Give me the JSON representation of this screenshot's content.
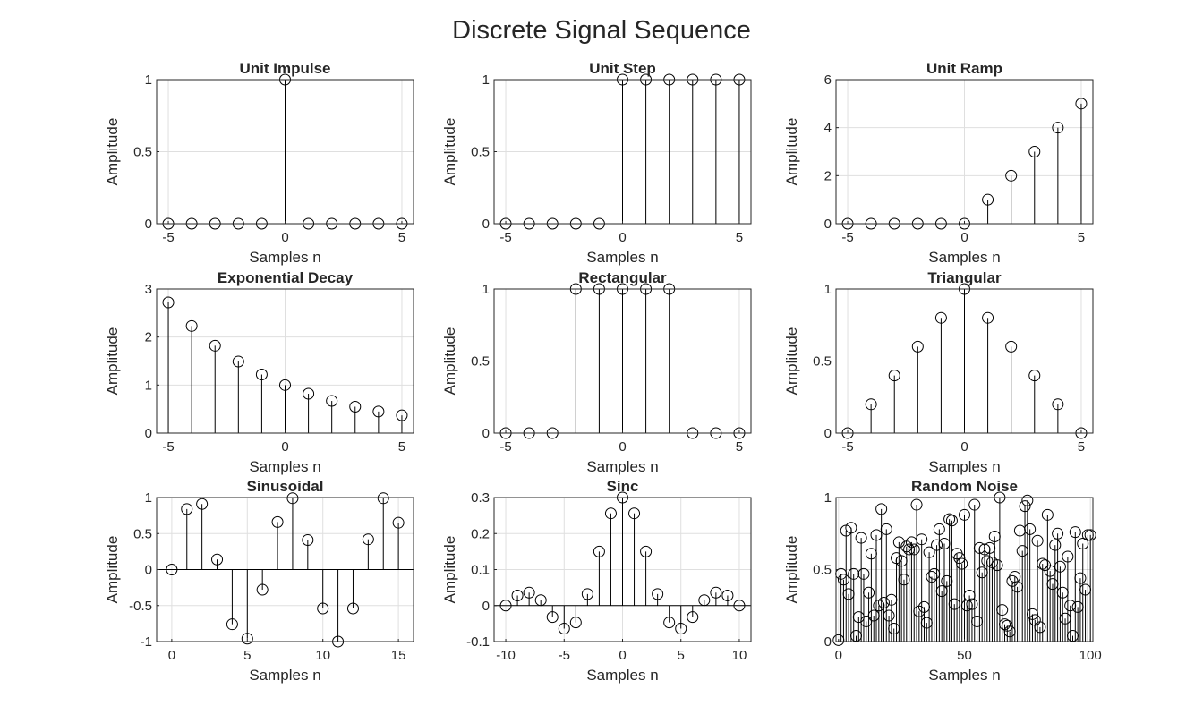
{
  "figure_title": "Discrete Signal Sequence",
  "chart_data": [
    {
      "type": "stem",
      "title": "Unit Impulse",
      "xlabel": "Samples n",
      "ylabel": "Amplitude",
      "xlim": [
        -5.5,
        5.5
      ],
      "ylim": [
        0,
        1
      ],
      "xticks": [
        -5,
        0,
        5
      ],
      "yticks": [
        0,
        0.5,
        1
      ],
      "grid": true,
      "x": [
        -5,
        -4,
        -3,
        -2,
        -1,
        0,
        1,
        2,
        3,
        4,
        5
      ],
      "y": [
        0,
        0,
        0,
        0,
        0,
        1,
        0,
        0,
        0,
        0,
        0
      ]
    },
    {
      "type": "stem",
      "title": "Unit Step",
      "xlabel": "Samples n",
      "ylabel": "Amplitude",
      "xlim": [
        -5.5,
        5.5
      ],
      "ylim": [
        0,
        1
      ],
      "xticks": [
        -5,
        0,
        5
      ],
      "yticks": [
        0,
        0.5,
        1
      ],
      "grid": true,
      "x": [
        -5,
        -4,
        -3,
        -2,
        -1,
        0,
        1,
        2,
        3,
        4,
        5
      ],
      "y": [
        0,
        0,
        0,
        0,
        0,
        1,
        1,
        1,
        1,
        1,
        1
      ]
    },
    {
      "type": "stem",
      "title": "Unit Ramp",
      "xlabel": "Samples n",
      "ylabel": "Amplitude",
      "xlim": [
        -5.5,
        5.5
      ],
      "ylim": [
        0,
        6
      ],
      "xticks": [
        -5,
        0,
        5
      ],
      "yticks": [
        0,
        2,
        4,
        6
      ],
      "grid": true,
      "x": [
        -5,
        -4,
        -3,
        -2,
        -1,
        0,
        1,
        2,
        3,
        4,
        5
      ],
      "y": [
        0,
        0,
        0,
        0,
        0,
        0,
        1,
        2,
        3,
        4,
        5
      ]
    },
    {
      "type": "stem",
      "title": "Exponential Decay",
      "xlabel": "Samples n",
      "ylabel": "Amplitude",
      "xlim": [
        -5.5,
        5.5
      ],
      "ylim": [
        0,
        3
      ],
      "xticks": [
        -5,
        0,
        5
      ],
      "yticks": [
        0,
        1,
        2,
        3
      ],
      "grid": true,
      "x": [
        -5,
        -4,
        -3,
        -2,
        -1,
        0,
        1,
        2,
        3,
        4,
        5
      ],
      "y": [
        2.72,
        2.23,
        1.82,
        1.49,
        1.22,
        1.0,
        0.82,
        0.67,
        0.55,
        0.45,
        0.37
      ]
    },
    {
      "type": "stem",
      "title": "Rectangular",
      "xlabel": "Samples n",
      "ylabel": "Amplitude",
      "xlim": [
        -5.5,
        5.5
      ],
      "ylim": [
        0,
        1
      ],
      "xticks": [
        -5,
        0,
        5
      ],
      "yticks": [
        0,
        0.5,
        1
      ],
      "grid": true,
      "x": [
        -5,
        -4,
        -3,
        -2,
        -1,
        0,
        1,
        2,
        3,
        4,
        5
      ],
      "y": [
        0,
        0,
        0,
        1,
        1,
        1,
        1,
        1,
        0,
        0,
        0
      ]
    },
    {
      "type": "stem",
      "title": "Triangular",
      "xlabel": "Samples n",
      "ylabel": "Amplitude",
      "xlim": [
        -5.5,
        5.5
      ],
      "ylim": [
        0,
        1
      ],
      "xticks": [
        -5,
        0,
        5
      ],
      "yticks": [
        0,
        0.5,
        1
      ],
      "grid": true,
      "x": [
        -5,
        -4,
        -3,
        -2,
        -1,
        0,
        1,
        2,
        3,
        4,
        5
      ],
      "y": [
        0,
        0.2,
        0.4,
        0.6,
        0.8,
        1.0,
        0.8,
        0.6,
        0.4,
        0.2,
        0
      ]
    },
    {
      "type": "stem",
      "title": "Sinusoidal",
      "xlabel": "Samples n",
      "ylabel": "Amplitude",
      "xlim": [
        -1,
        16
      ],
      "ylim": [
        -1,
        1
      ],
      "xticks": [
        0,
        5,
        10,
        15
      ],
      "yticks": [
        -1,
        -0.5,
        0,
        0.5,
        1
      ],
      "grid": true,
      "x": [
        0,
        1,
        2,
        3,
        4,
        5,
        6,
        7,
        8,
        9,
        10,
        11,
        12,
        13,
        14,
        15
      ],
      "y": [
        0,
        0.84,
        0.91,
        0.14,
        -0.76,
        -0.96,
        -0.28,
        0.66,
        0.99,
        0.41,
        -0.54,
        -1.0,
        -0.54,
        0.42,
        0.99,
        0.65
      ]
    },
    {
      "type": "stem",
      "title": "Sinc",
      "xlabel": "Samples n",
      "ylabel": "Amplitude",
      "xlim": [
        -11,
        11
      ],
      "ylim": [
        -0.1,
        0.3
      ],
      "xticks": [
        -10,
        -5,
        0,
        5,
        10
      ],
      "yticks": [
        -0.1,
        0,
        0.1,
        0.2,
        0.3
      ],
      "grid": true,
      "x": [
        -10,
        -9,
        -8,
        -7,
        -6,
        -5,
        -4,
        -3,
        -2,
        -1,
        0,
        1,
        2,
        3,
        4,
        5,
        6,
        7,
        8,
        9,
        10
      ],
      "y": [
        0,
        0.028,
        0.036,
        0.015,
        -0.032,
        -0.064,
        -0.047,
        0.032,
        0.15,
        0.256,
        0.3,
        0.256,
        0.15,
        0.032,
        -0.047,
        -0.064,
        -0.032,
        0.015,
        0.036,
        0.028,
        0
      ]
    },
    {
      "type": "stem",
      "title": "Random Noise",
      "xlabel": "Samples n",
      "ylabel": "Amplitude",
      "xlim": [
        -1,
        101
      ],
      "ylim": [
        0,
        1
      ],
      "xticks": [
        0,
        50,
        100
      ],
      "yticks": [
        0,
        0.5,
        1
      ],
      "grid": true,
      "x": [
        0,
        1,
        2,
        3,
        4,
        5,
        6,
        7,
        8,
        9,
        10,
        11,
        12,
        13,
        14,
        15,
        16,
        17,
        18,
        19,
        20,
        21,
        22,
        23,
        24,
        25,
        26,
        27,
        28,
        29,
        30,
        31,
        32,
        33,
        34,
        35,
        36,
        37,
        38,
        39,
        40,
        41,
        42,
        43,
        44,
        45,
        46,
        47,
        48,
        49,
        50,
        51,
        52,
        53,
        54,
        55,
        56,
        57,
        58,
        59,
        60,
        61,
        62,
        63,
        64,
        65,
        66,
        67,
        68,
        69,
        70,
        71,
        72,
        73,
        74,
        75,
        76,
        77,
        78,
        79,
        80,
        81,
        82,
        83,
        84,
        85,
        86,
        87,
        88,
        89,
        90,
        91,
        92,
        93,
        94,
        95,
        96,
        97,
        98,
        99,
        100
      ],
      "y": [
        0.01,
        0.47,
        0.43,
        0.77,
        0.33,
        0.79,
        0.47,
        0.04,
        0.17,
        0.72,
        0.47,
        0.14,
        0.34,
        0.61,
        0.18,
        0.74,
        0.25,
        0.92,
        0.27,
        0.78,
        0.18,
        0.29,
        0.09,
        0.58,
        0.69,
        0.56,
        0.43,
        0.66,
        0.64,
        0.69,
        0.64,
        0.95,
        0.21,
        0.71,
        0.24,
        0.13,
        0.62,
        0.45,
        0.47,
        0.67,
        0.78,
        0.35,
        0.68,
        0.42,
        0.85,
        0.84,
        0.26,
        0.61,
        0.58,
        0.54,
        0.88,
        0.25,
        0.32,
        0.26,
        0.95,
        0.14,
        0.65,
        0.48,
        0.64,
        0.56,
        0.65,
        0.55,
        0.73,
        0.53,
        1.0,
        0.22,
        0.12,
        0.11,
        0.07,
        0.42,
        0.45,
        0.38,
        0.77,
        0.63,
        0.94,
        0.98,
        0.78,
        0.19,
        0.15,
        0.7,
        0.1,
        0.54,
        0.53,
        0.88,
        0.49,
        0.4,
        0.67,
        0.75,
        0.52,
        0.34,
        0.16,
        0.59,
        0.25,
        0.04,
        0.76,
        0.24,
        0.44,
        0.68,
        0.36,
        0.74,
        0.74
      ]
    }
  ]
}
